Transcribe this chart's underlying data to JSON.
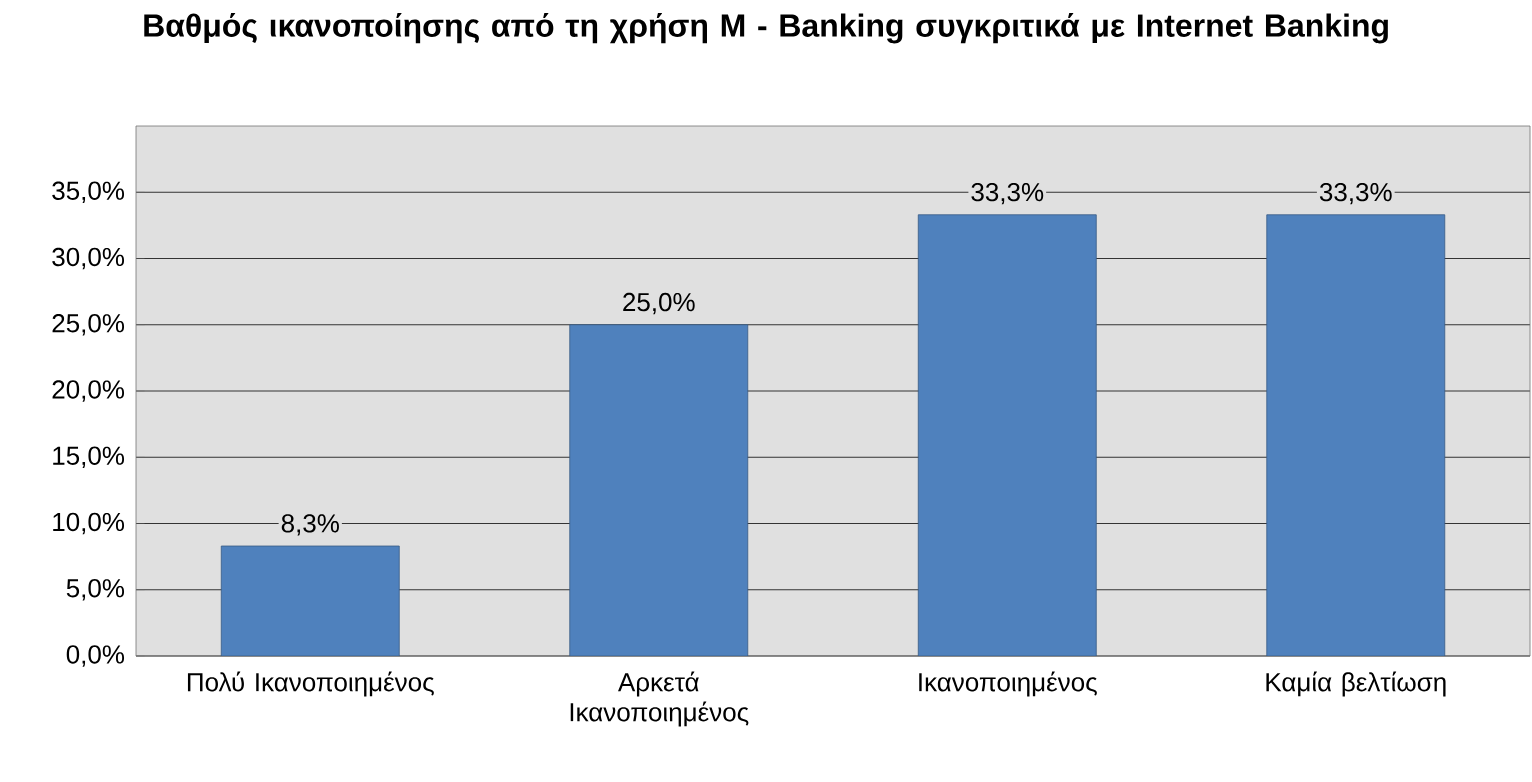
{
  "chart_data": {
    "type": "bar",
    "title": "Βαθμός ικανοποίησης από τη χρήση M - Banking συγκριτικά με Internet Banking",
    "categories": [
      "Πολύ Ικανοποιημένος",
      "Αρκετά Ικανοποιημένος",
      "Ικανοποιημένος",
      "Καμία βελτίωση"
    ],
    "values": [
      8.3,
      25.0,
      33.3,
      33.3
    ],
    "value_labels": [
      "8,3%",
      "25,0%",
      "33,3%",
      "33,3%"
    ],
    "color": "#4f81bd",
    "ylim": [
      0,
      40
    ],
    "yticks": [
      {
        "value": 0,
        "label": "0,0%"
      },
      {
        "value": 5,
        "label": "5,0%"
      },
      {
        "value": 10,
        "label": "10,0%"
      },
      {
        "value": 15,
        "label": "15,0%"
      },
      {
        "value": 20,
        "label": "20,0%"
      },
      {
        "value": 25,
        "label": "25,0%"
      },
      {
        "value": 30,
        "label": "30,0%"
      },
      {
        "value": 35,
        "label": "35,0%"
      }
    ],
    "grid": "y"
  }
}
